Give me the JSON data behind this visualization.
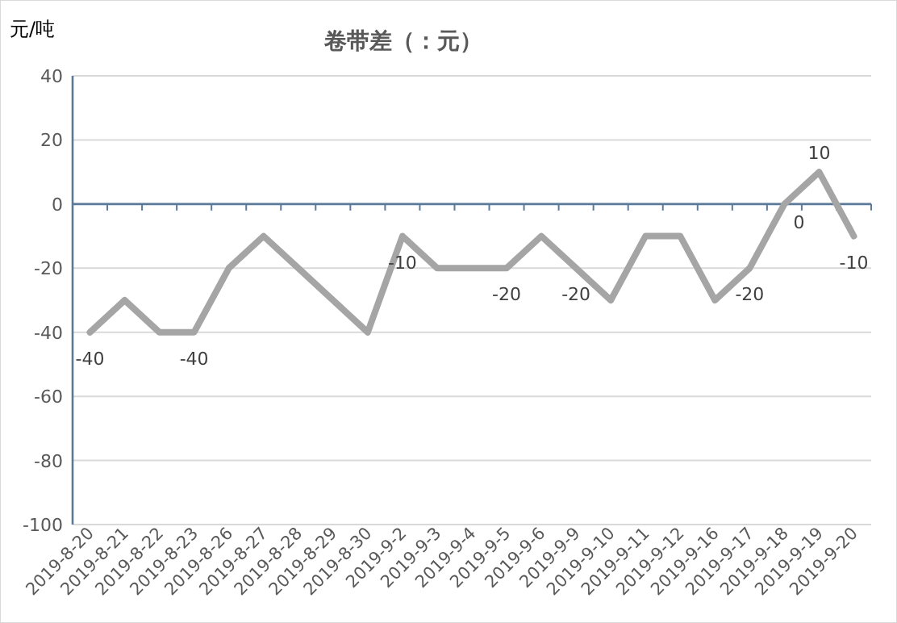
{
  "chart_data": {
    "type": "line",
    "title": "卷带差（：元）",
    "ylabel": "元/吨",
    "categories": [
      "2019-8-20",
      "2019-8-21",
      "2019-8-22",
      "2019-8-23",
      "2019-8-26",
      "2019-8-27",
      "2019-8-28",
      "2019-8-29",
      "2019-8-30",
      "2019-9-2",
      "2019-9-3",
      "2019-9-4",
      "2019-9-5",
      "2019-9-6",
      "2019-9-9",
      "2019-9-10",
      "2019-9-11",
      "2019-9-12",
      "2019-9-16",
      "2019-9-17",
      "2019-9-18",
      "2019-9-19",
      "2019-9-20"
    ],
    "series": [
      {
        "color": "#a5a5a5",
        "values": [
          -40,
          -30,
          -40,
          -40,
          -20,
          -10,
          -20,
          -30,
          -40,
          -10,
          -20,
          -20,
          -20,
          -10,
          -20,
          -30,
          -10,
          -10,
          -30,
          -20,
          0,
          10,
          -10
        ],
        "value_labels": [
          "-40",
          null,
          null,
          "-40",
          null,
          null,
          null,
          null,
          null,
          "-10",
          null,
          null,
          "-20",
          null,
          "-20",
          null,
          null,
          null,
          null,
          "-20",
          "0",
          "10",
          "-10"
        ]
      }
    ],
    "ylim": [
      -100,
      40
    ],
    "yticks": [
      -100,
      -80,
      -60,
      -40,
      -20,
      0,
      20,
      40
    ],
    "grid": "y",
    "ref_lines": [
      {
        "axis": "y",
        "value": 0,
        "color": "#5b7a99"
      }
    ],
    "marker": "none",
    "line_style": "solid"
  }
}
